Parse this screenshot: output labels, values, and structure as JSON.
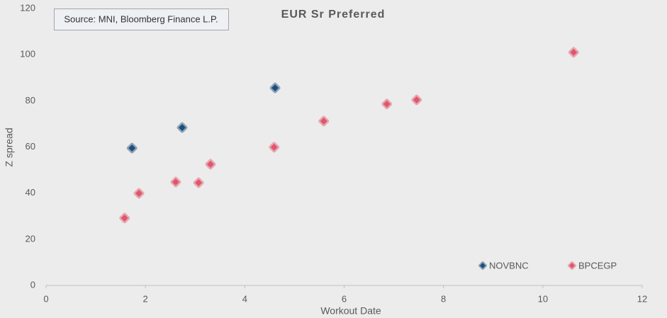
{
  "chart_data": {
    "type": "scatter",
    "title": "EUR Sr Preferred",
    "annotation": "Source: MNI, Bloomberg Finance L.P.",
    "x_label": "Workout Date",
    "y_label": "Z spread",
    "xlim": [
      0,
      12
    ],
    "xticks": [
      0,
      2,
      4,
      6,
      8,
      10,
      12
    ],
    "ylim": [
      0,
      120
    ],
    "yticks": [
      0,
      20,
      40,
      60,
      80,
      100,
      120
    ],
    "grid": false,
    "legend": "lower right",
    "series": [
      {
        "name": "NOVBNC",
        "color": "#1f4e79",
        "x": [
          1.73,
          2.74,
          4.61
        ],
        "values": [
          59.5,
          68.4,
          85.6
        ]
      },
      {
        "name": "BPCEGP",
        "color": "#e0566c",
        "x": [
          1.58,
          1.87,
          2.61,
          3.07,
          3.31,
          4.59,
          5.59,
          6.86,
          7.46,
          10.62
        ],
        "values": [
          29.2,
          39.9,
          44.8,
          44.5,
          52.5,
          59.9,
          71.2,
          78.6,
          80.4,
          101
        ]
      }
    ]
  }
}
